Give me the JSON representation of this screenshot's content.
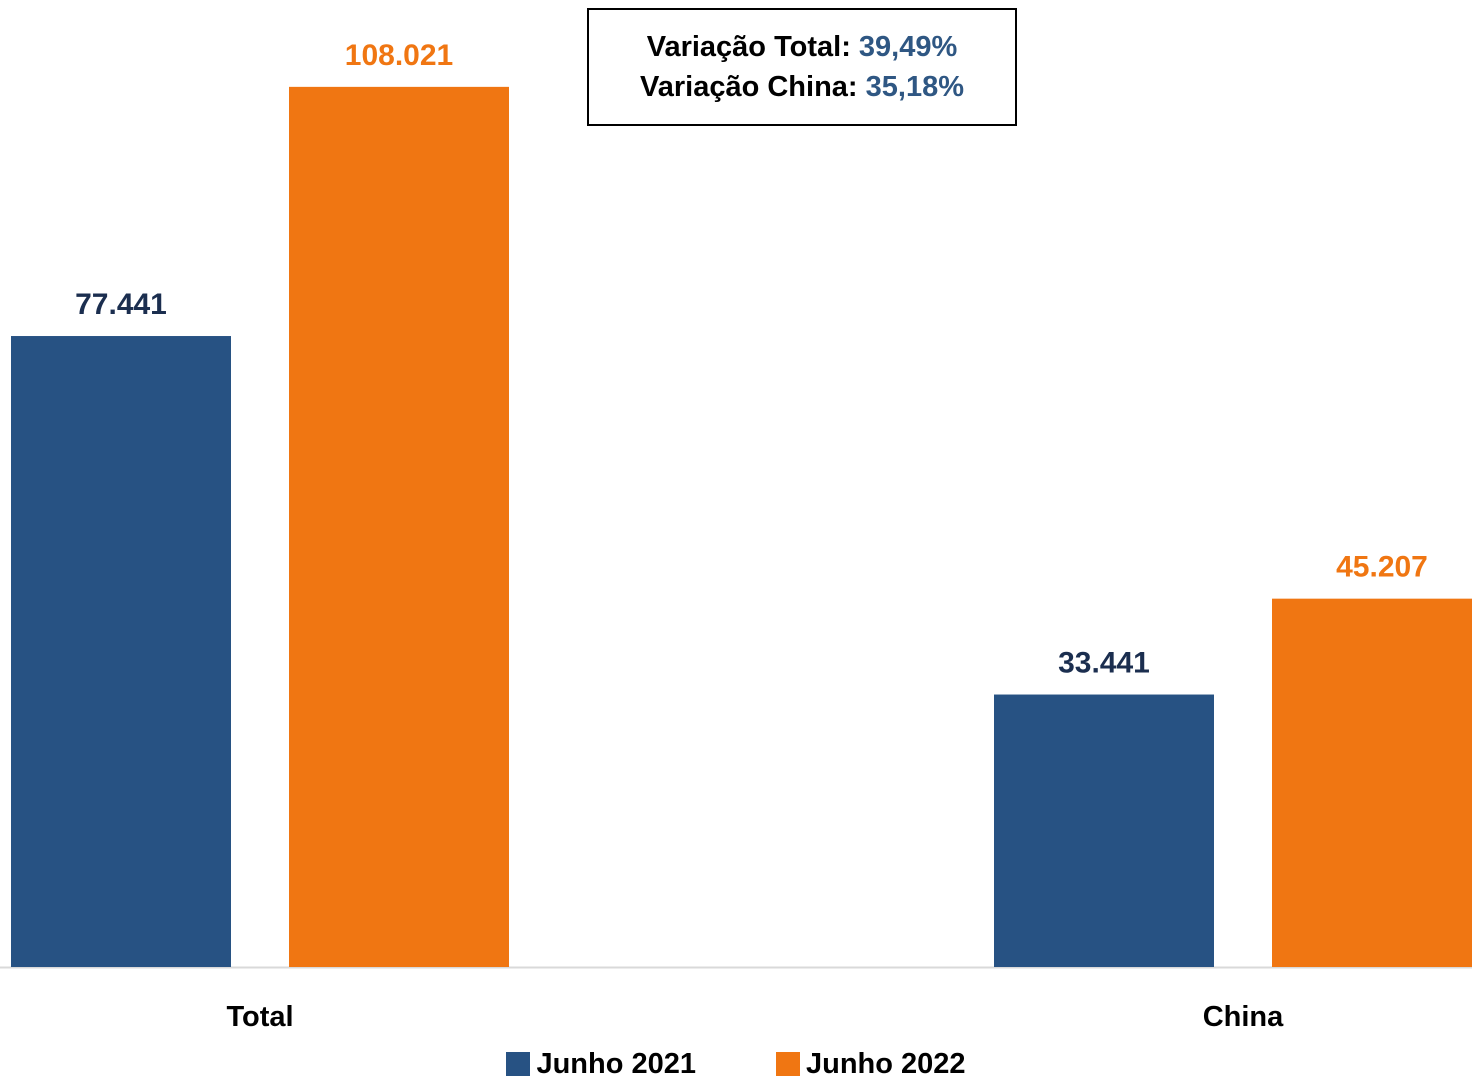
{
  "chart_data": {
    "type": "bar",
    "categories": [
      "Total",
      "China"
    ],
    "series": [
      {
        "name": "Junho 2021",
        "values": [
          77441,
          33441
        ],
        "labels": [
          "77.441",
          "33.441"
        ],
        "color": "#275283"
      },
      {
        "name": "Junho 2022",
        "values": [
          108021,
          45207
        ],
        "labels": [
          "108.021",
          "45.207"
        ],
        "color": "#F07612"
      }
    ],
    "ylim": [
      0,
      115000
    ],
    "grid": false,
    "legend_position": "bottom",
    "label_color_2021": "#1B2E4F"
  },
  "annotation": {
    "total_label": "Variação Total:",
    "total_value": "39,49%",
    "china_label": "Variação China:",
    "china_value": "35,18%",
    "value_color": "#2F5783"
  }
}
